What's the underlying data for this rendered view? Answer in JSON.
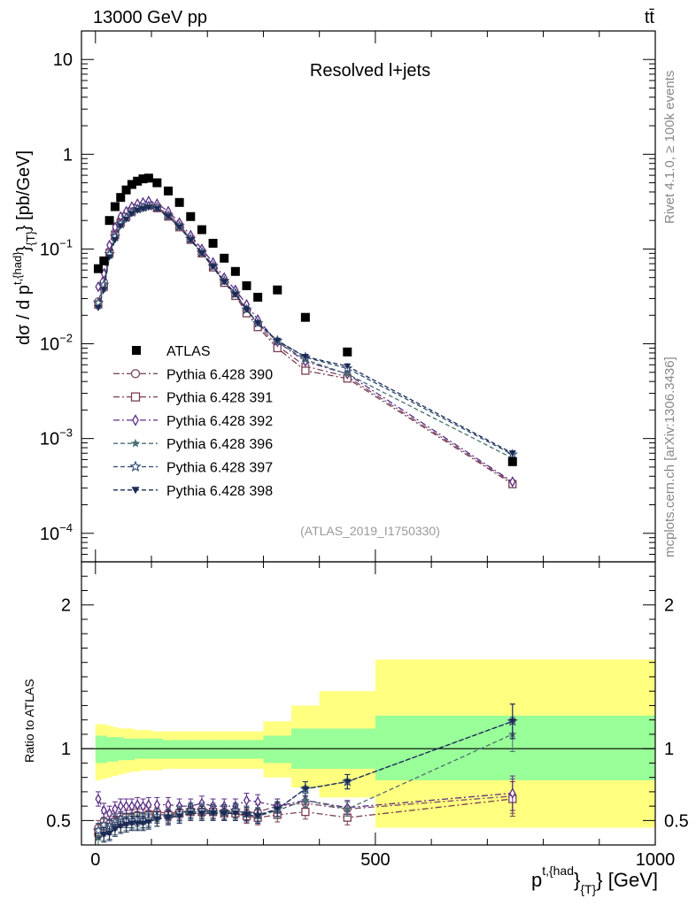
{
  "header": {
    "left": "13000 GeV pp",
    "right": "tt̄"
  },
  "side": {
    "rivet": "Rivet 4.1.0, ≥ 100k events",
    "mcplots": "mcplots.cern.ch [arXiv:1306.3436]"
  },
  "analysis_id": "(ATLAS_2019_I1750330)",
  "colors": {
    "atlas": "#000000",
    "s390": "#7b4a6a",
    "s391": "#7a3e52",
    "s392": "#5a2d86",
    "s396": "#4a7070",
    "s397": "#2f4a70",
    "s398": "#1c2a55",
    "band1": "#ffff80",
    "band2": "#99ff99"
  },
  "chart_data": [
    {
      "type": "scatter",
      "title": "Resolved l+jets",
      "xlabel": "p^{t,{had}}_{T} [GeV]",
      "ylabel": "dσ / d p^{t,{had}}_{T} [pb/GeV]",
      "yscale": "log",
      "xlim": [
        -25,
        1000
      ],
      "ylim": [
        5e-05,
        20
      ],
      "yticks": [
        {
          "v": 10,
          "label": "10"
        },
        {
          "v": 1,
          "label": "1"
        },
        {
          "v": 0.1,
          "label": "10^-1"
        },
        {
          "v": 0.01,
          "label": "10^-2"
        },
        {
          "v": 0.001,
          "label": "10^-3"
        },
        {
          "v": 0.0001,
          "label": "10^-4"
        }
      ],
      "x": [
        5,
        15,
        25,
        35,
        45,
        55,
        65,
        75,
        85,
        95,
        110,
        130,
        150,
        170,
        190,
        210,
        230,
        250,
        270,
        290,
        325,
        375,
        450,
        745
      ],
      "series": [
        {
          "name": "ATLAS",
          "marker": "square",
          "values": [
            0.062,
            0.075,
            0.2,
            0.28,
            0.35,
            0.42,
            0.48,
            0.52,
            0.55,
            0.56,
            0.5,
            0.41,
            0.31,
            0.22,
            0.16,
            0.115,
            0.08,
            0.058,
            0.041,
            0.031,
            0.037,
            0.019,
            0.0082,
            0.00057
          ]
        },
        {
          "name": "Pythia 6.428 390",
          "marker": "circle-open",
          "line": "dashdot",
          "values": [
            0.028,
            0.045,
            0.095,
            0.15,
            0.2,
            0.23,
            0.26,
            0.28,
            0.29,
            0.3,
            0.28,
            0.23,
            0.18,
            0.13,
            0.095,
            0.067,
            0.046,
            0.034,
            0.022,
            0.016,
            0.0095,
            0.0058,
            0.0045,
            0.00034
          ]
        },
        {
          "name": "Pythia 6.428 391",
          "marker": "square-open",
          "line": "dashdot",
          "values": [
            0.026,
            0.04,
            0.09,
            0.14,
            0.19,
            0.22,
            0.25,
            0.27,
            0.28,
            0.29,
            0.27,
            0.22,
            0.17,
            0.125,
            0.09,
            0.064,
            0.044,
            0.032,
            0.021,
            0.015,
            0.009,
            0.0052,
            0.0043,
            0.00033
          ]
        },
        {
          "name": "Pythia 6.428 392",
          "marker": "diamond-open",
          "line": "dashdot",
          "values": [
            0.04,
            0.055,
            0.11,
            0.17,
            0.22,
            0.25,
            0.28,
            0.3,
            0.31,
            0.32,
            0.3,
            0.25,
            0.19,
            0.14,
            0.1,
            0.072,
            0.05,
            0.037,
            0.026,
            0.018,
            0.0105,
            0.0065,
            0.0048,
            0.00035
          ]
        },
        {
          "name": "Pythia 6.428 396",
          "marker": "star",
          "line": "dashed",
          "values": [
            0.025,
            0.038,
            0.085,
            0.13,
            0.18,
            0.21,
            0.24,
            0.26,
            0.27,
            0.28,
            0.27,
            0.22,
            0.17,
            0.125,
            0.09,
            0.065,
            0.045,
            0.033,
            0.023,
            0.0165,
            0.0105,
            0.0068,
            0.0048,
            0.00062
          ]
        },
        {
          "name": "Pythia 6.428 397",
          "marker": "star-open",
          "line": "dashed",
          "values": [
            0.027,
            0.042,
            0.088,
            0.135,
            0.185,
            0.215,
            0.245,
            0.265,
            0.275,
            0.285,
            0.275,
            0.225,
            0.175,
            0.128,
            0.092,
            0.066,
            0.046,
            0.034,
            0.023,
            0.0165,
            0.0108,
            0.0072,
            0.0055,
            0.00068
          ]
        },
        {
          "name": "Pythia 6.428 398",
          "marker": "triangle-down",
          "line": "dashed",
          "values": [
            0.024,
            0.037,
            0.082,
            0.125,
            0.175,
            0.205,
            0.235,
            0.255,
            0.265,
            0.275,
            0.265,
            0.22,
            0.17,
            0.124,
            0.09,
            0.065,
            0.045,
            0.033,
            0.023,
            0.0165,
            0.0108,
            0.0073,
            0.0058,
            0.0007
          ]
        }
      ]
    },
    {
      "type": "scatter",
      "ylabel": "Ratio to ATLAS",
      "xlabel": "p^{t,{had}}_{T} [GeV]",
      "xlim": [
        -25,
        1000
      ],
      "ylim": [
        0.33,
        2.3
      ],
      "xticks": [
        0,
        500,
        1000
      ],
      "yticks": [
        0.5,
        1,
        2
      ],
      "bands": {
        "edges": [
          0,
          10,
          20,
          30,
          40,
          50,
          60,
          70,
          80,
          90,
          100,
          120,
          140,
          160,
          180,
          200,
          220,
          240,
          260,
          280,
          300,
          350,
          400,
          500,
          1000
        ],
        "outer_lo": [
          0.78,
          0.79,
          0.8,
          0.81,
          0.82,
          0.83,
          0.84,
          0.84,
          0.85,
          0.85,
          0.85,
          0.86,
          0.86,
          0.86,
          0.86,
          0.86,
          0.86,
          0.86,
          0.86,
          0.86,
          0.8,
          0.73,
          0.66,
          0.45
        ],
        "outer_hi": [
          1.17,
          1.17,
          1.16,
          1.15,
          1.14,
          1.14,
          1.14,
          1.13,
          1.13,
          1.13,
          1.12,
          1.12,
          1.12,
          1.12,
          1.12,
          1.12,
          1.12,
          1.12,
          1.12,
          1.12,
          1.19,
          1.3,
          1.4,
          1.62
        ],
        "inner_lo": [
          0.9,
          0.9,
          0.91,
          0.91,
          0.92,
          0.92,
          0.92,
          0.93,
          0.93,
          0.93,
          0.93,
          0.93,
          0.93,
          0.93,
          0.93,
          0.93,
          0.93,
          0.93,
          0.93,
          0.93,
          0.9,
          0.86,
          0.86,
          0.78
        ],
        "inner_hi": [
          1.09,
          1.09,
          1.08,
          1.08,
          1.08,
          1.07,
          1.07,
          1.07,
          1.07,
          1.07,
          1.07,
          1.06,
          1.06,
          1.06,
          1.06,
          1.06,
          1.06,
          1.06,
          1.06,
          1.06,
          1.09,
          1.14,
          1.14,
          1.23
        ]
      },
      "x": [
        5,
        15,
        25,
        35,
        45,
        55,
        65,
        75,
        85,
        95,
        110,
        130,
        150,
        170,
        190,
        210,
        230,
        250,
        270,
        290,
        325,
        375,
        450,
        745
      ],
      "series": [
        {
          "name": "Pythia 6.428 390",
          "values": [
            0.45,
            0.5,
            0.48,
            0.5,
            0.51,
            0.52,
            0.53,
            0.54,
            0.53,
            0.55,
            0.56,
            0.55,
            0.56,
            0.57,
            0.58,
            0.57,
            0.56,
            0.57,
            0.55,
            0.56,
            0.6,
            0.62,
            0.58,
            0.67
          ]
        },
        {
          "name": "Pythia 6.428 391",
          "values": [
            0.42,
            0.46,
            0.45,
            0.49,
            0.5,
            0.52,
            0.52,
            0.53,
            0.53,
            0.54,
            0.54,
            0.54,
            0.55,
            0.56,
            0.56,
            0.56,
            0.55,
            0.55,
            0.53,
            0.52,
            0.54,
            0.56,
            0.52,
            0.65
          ]
        },
        {
          "name": "Pythia 6.428 392",
          "values": [
            0.65,
            0.57,
            0.55,
            0.58,
            0.6,
            0.6,
            0.6,
            0.61,
            0.6,
            0.61,
            0.61,
            0.61,
            0.6,
            0.6,
            0.62,
            0.6,
            0.6,
            0.6,
            0.64,
            0.63,
            0.6,
            0.64,
            0.59,
            0.69
          ]
        },
        {
          "name": "Pythia 6.428 396",
          "values": [
            0.38,
            0.41,
            0.42,
            0.45,
            0.47,
            0.48,
            0.49,
            0.49,
            0.49,
            0.5,
            0.51,
            0.52,
            0.54,
            0.56,
            0.56,
            0.56,
            0.55,
            0.56,
            0.54,
            0.53,
            0.57,
            0.64,
            0.58,
            1.1
          ]
        },
        {
          "name": "Pythia 6.428 397",
          "values": [
            0.43,
            0.47,
            0.46,
            0.49,
            0.51,
            0.5,
            0.5,
            0.51,
            0.5,
            0.51,
            0.53,
            0.53,
            0.55,
            0.57,
            0.57,
            0.56,
            0.56,
            0.57,
            0.55,
            0.54,
            0.58,
            0.72,
            0.77,
            1.19
          ]
        },
        {
          "name": "Pythia 6.428 398",
          "values": [
            0.37,
            0.4,
            0.41,
            0.44,
            0.46,
            0.47,
            0.48,
            0.48,
            0.48,
            0.49,
            0.51,
            0.52,
            0.53,
            0.55,
            0.55,
            0.55,
            0.55,
            0.55,
            0.54,
            0.53,
            0.58,
            0.72,
            0.77,
            1.19
          ]
        }
      ]
    }
  ]
}
